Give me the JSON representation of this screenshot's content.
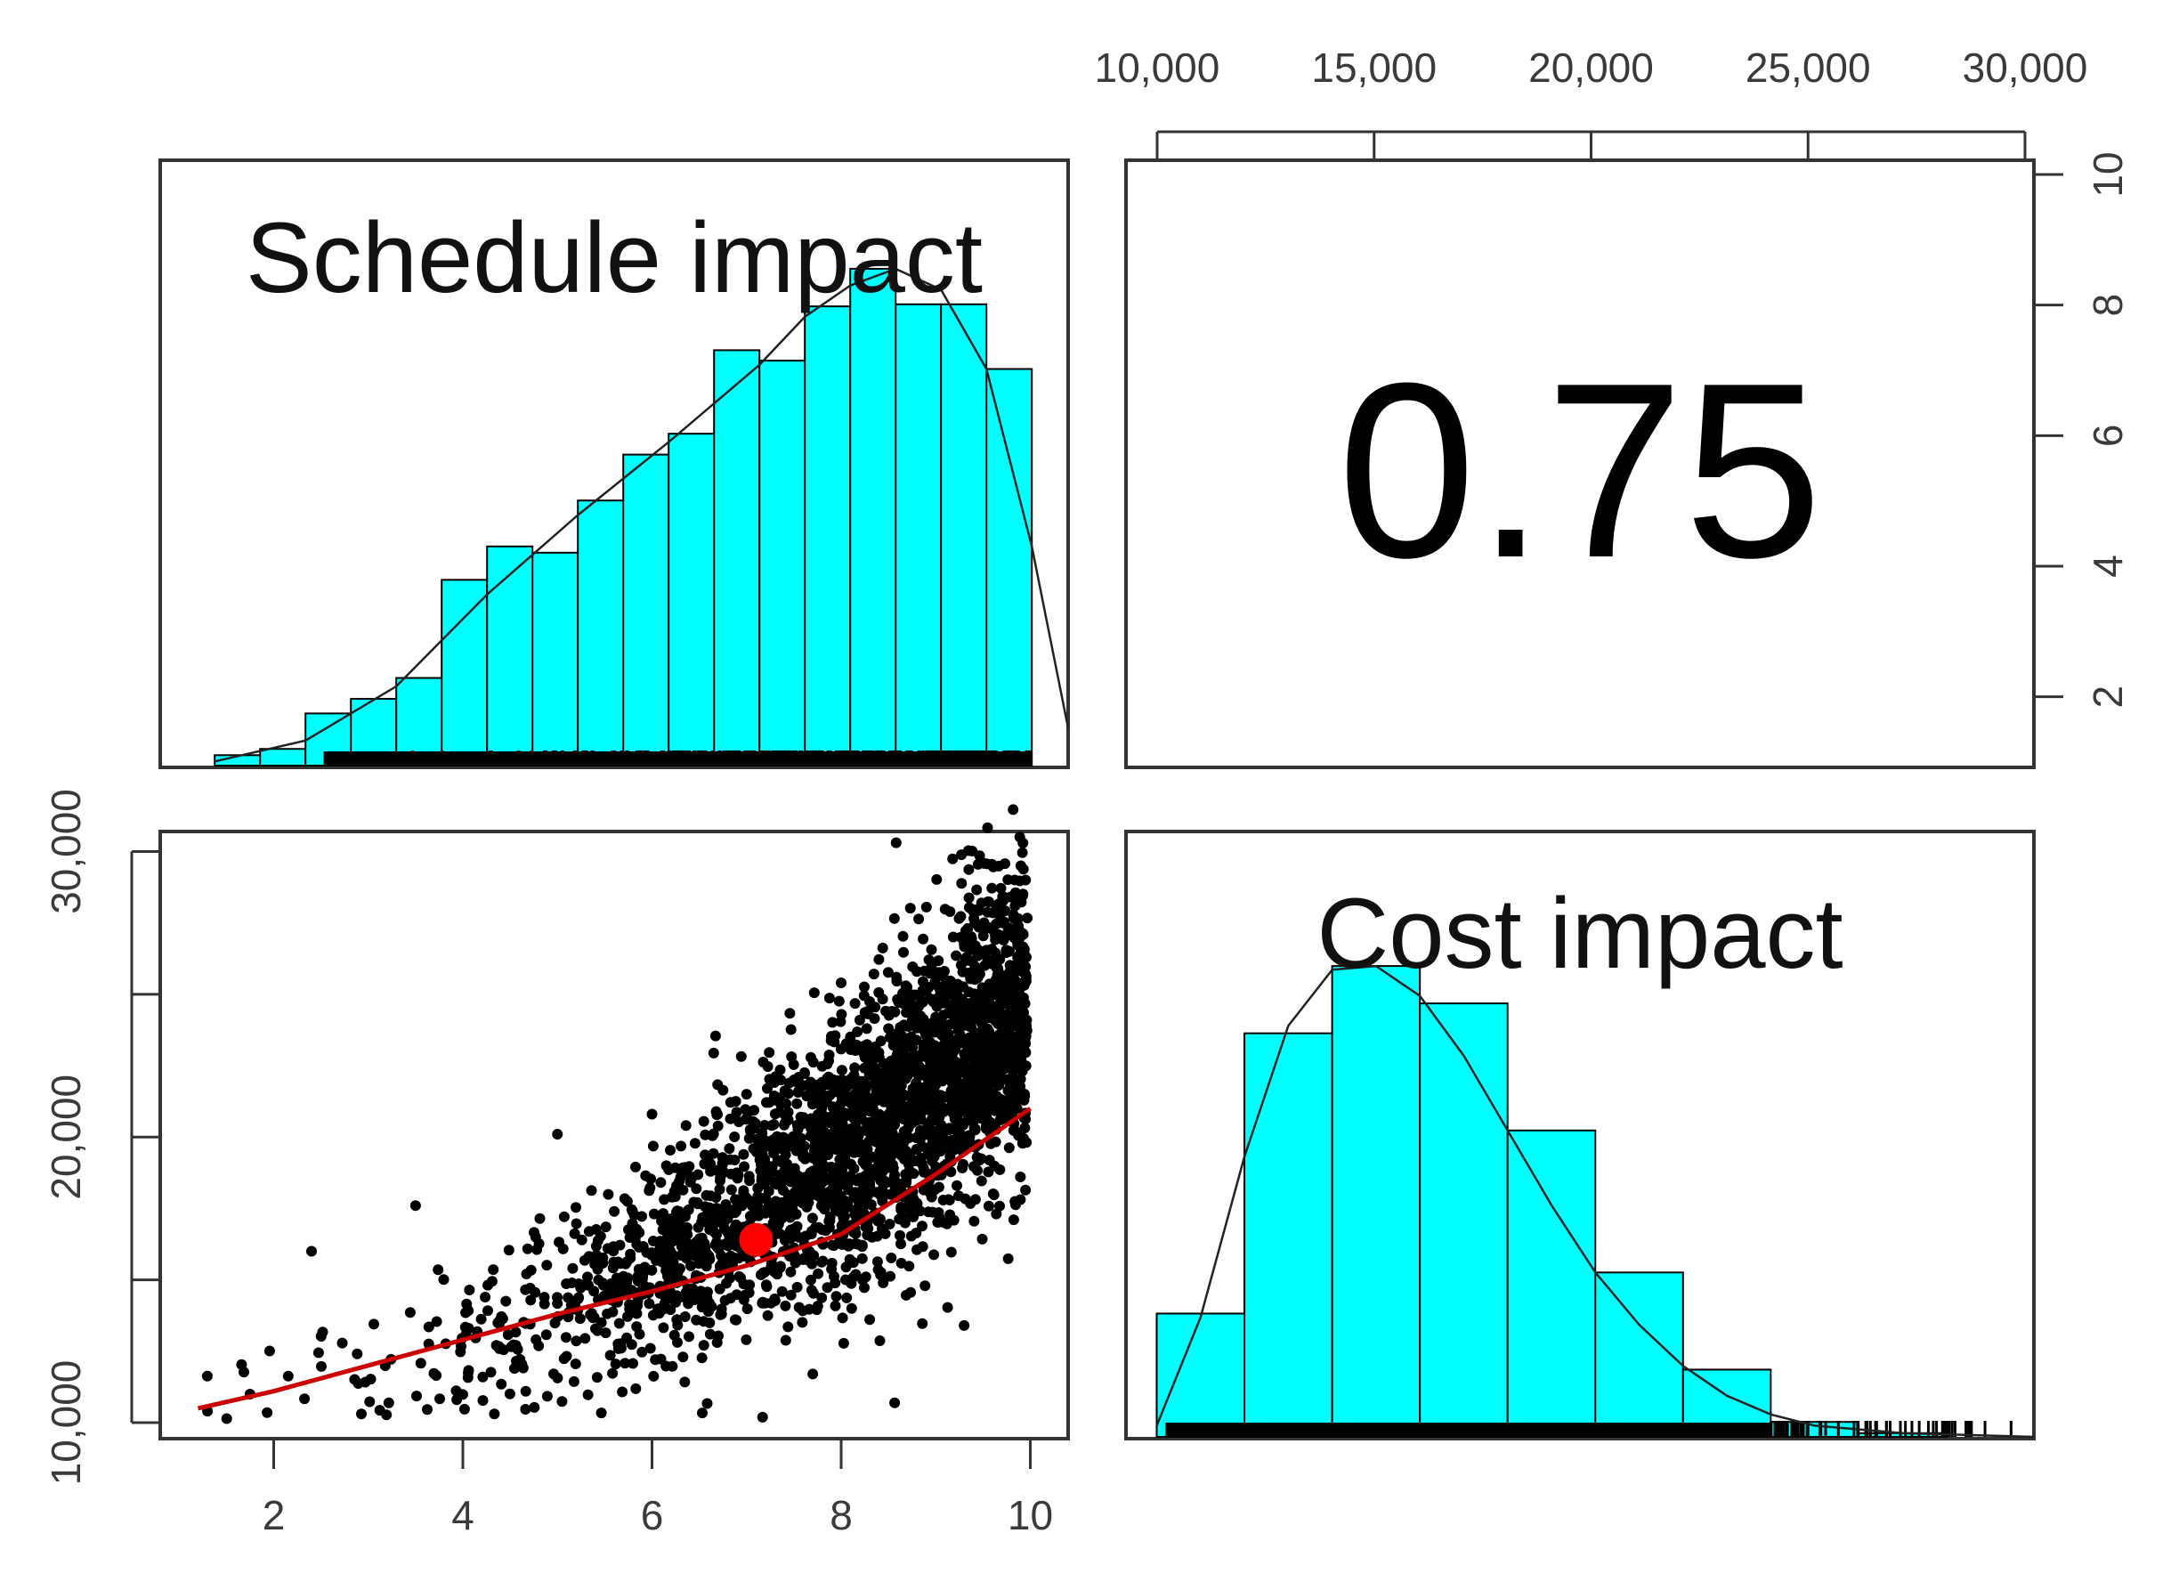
{
  "chart_data": {
    "type": "pairs",
    "colors": {
      "bar_fill": "#00ffff",
      "bar_stroke": "#000000",
      "smooth_line": "#cc0000",
      "center_point": "#ff0000",
      "points": "#000000",
      "frame": "#333333"
    },
    "variables": [
      "Schedule impact",
      "Cost impact"
    ],
    "correlation": {
      "label": "0.75",
      "value": 0.75
    },
    "schedule_histogram": {
      "title": "Schedule impact",
      "type": "bar",
      "bins": [
        1.0,
        1.5,
        2.0,
        2.5,
        3.0,
        3.5,
        4.0,
        4.5,
        5.0,
        5.5,
        6.0,
        6.5,
        7.0,
        7.5,
        8.0,
        8.5,
        9.0,
        9.5,
        10.0
      ],
      "heights": [
        0.05,
        0.08,
        0.25,
        0.32,
        0.42,
        0.89,
        1.05,
        1.02,
        1.27,
        1.49,
        1.59,
        1.99,
        1.94,
        2.2,
        2.38,
        2.21,
        2.21,
        1.9
      ],
      "density_curve": [
        [
          1.0,
          0.02
        ],
        [
          2.0,
          0.12
        ],
        [
          3.0,
          0.38
        ],
        [
          4.0,
          0.82
        ],
        [
          5.0,
          1.2
        ],
        [
          6.0,
          1.55
        ],
        [
          7.0,
          1.92
        ],
        [
          7.5,
          2.15
        ],
        [
          8.0,
          2.3
        ],
        [
          8.5,
          2.38
        ],
        [
          9.0,
          2.28
        ],
        [
          9.5,
          1.9
        ],
        [
          10.0,
          1.05
        ],
        [
          10.4,
          0.18
        ]
      ],
      "xlim": [
        0.4,
        10.4
      ],
      "ylim": [
        0,
        2.9
      ]
    },
    "cost_histogram": {
      "title": "Cost impact",
      "type": "bar",
      "bins": [
        10000,
        12000,
        14000,
        16000,
        18000,
        20000,
        22000,
        24000,
        26000,
        28000
      ],
      "heights": [
        0.33,
        1.08,
        1.26,
        1.16,
        0.82,
        0.44,
        0.18,
        0.04,
        0.01
      ],
      "density_curve": [
        [
          10000,
          0.03
        ],
        [
          11000,
          0.32
        ],
        [
          12000,
          0.75
        ],
        [
          13000,
          1.1
        ],
        [
          14000,
          1.25
        ],
        [
          15000,
          1.26
        ],
        [
          16000,
          1.18
        ],
        [
          17000,
          1.02
        ],
        [
          18000,
          0.82
        ],
        [
          19000,
          0.62
        ],
        [
          20000,
          0.44
        ],
        [
          21000,
          0.3
        ],
        [
          22000,
          0.19
        ],
        [
          23000,
          0.11
        ],
        [
          24000,
          0.06
        ],
        [
          25000,
          0.03
        ],
        [
          27000,
          0.01
        ],
        [
          30000,
          0.0
        ]
      ],
      "xlim": [
        9300,
        30000
      ],
      "ylim": [
        0,
        1.62
      ]
    },
    "scatter": {
      "type": "scatter",
      "xlabel": "Schedule impact",
      "ylabel": "Cost impact",
      "xlim": [
        0.8,
        10.4
      ],
      "ylim": [
        9500,
        30700
      ],
      "center_point": [
        7.1,
        16400
      ],
      "smooth_line": [
        [
          1.2,
          10500
        ],
        [
          2.0,
          11100
        ],
        [
          3.0,
          12000
        ],
        [
          4.0,
          12900
        ],
        [
          5.0,
          13800
        ],
        [
          6.0,
          14600
        ],
        [
          7.0,
          15500
        ],
        [
          8.0,
          16600
        ],
        [
          9.0,
          18700
        ],
        [
          10.0,
          21000
        ]
      ],
      "outlier_points": [
        [
          2.4,
          16000
        ],
        [
          3.5,
          17600
        ],
        [
          5.0,
          20100
        ],
        [
          6.0,
          20800
        ],
        [
          7.0,
          21500
        ],
        [
          7.5,
          22000
        ],
        [
          8.0,
          25400
        ],
        [
          9.0,
          24200
        ],
        [
          9.3,
          26800
        ],
        [
          9.7,
          27500
        ],
        [
          9.95,
          29000
        ],
        [
          9.9,
          29500
        ],
        [
          8.5,
          23800
        ],
        [
          7.7,
          11700
        ],
        [
          9.3,
          13400
        ],
        [
          1.3,
          10400
        ]
      ]
    },
    "axes": {
      "top_x": {
        "ticks": [
          "10,000",
          "15,000",
          "20,000",
          "25,000",
          "30,000"
        ],
        "values": [
          10000,
          15000,
          20000,
          25000,
          30000
        ]
      },
      "right_y": {
        "ticks": [
          "2",
          "4",
          "6",
          "8",
          "10"
        ],
        "values": [
          2,
          4,
          6,
          8,
          10
        ]
      },
      "left_y": {
        "ticks": [
          "10,000",
          "20,000",
          "30,000"
        ],
        "values": [
          10000,
          20000,
          30000
        ],
        "minor": [
          15000,
          25000
        ]
      },
      "bottom_x": {
        "ticks": [
          "2",
          "4",
          "6",
          "8",
          "10"
        ],
        "values": [
          2,
          4,
          6,
          8,
          10
        ]
      }
    }
  }
}
